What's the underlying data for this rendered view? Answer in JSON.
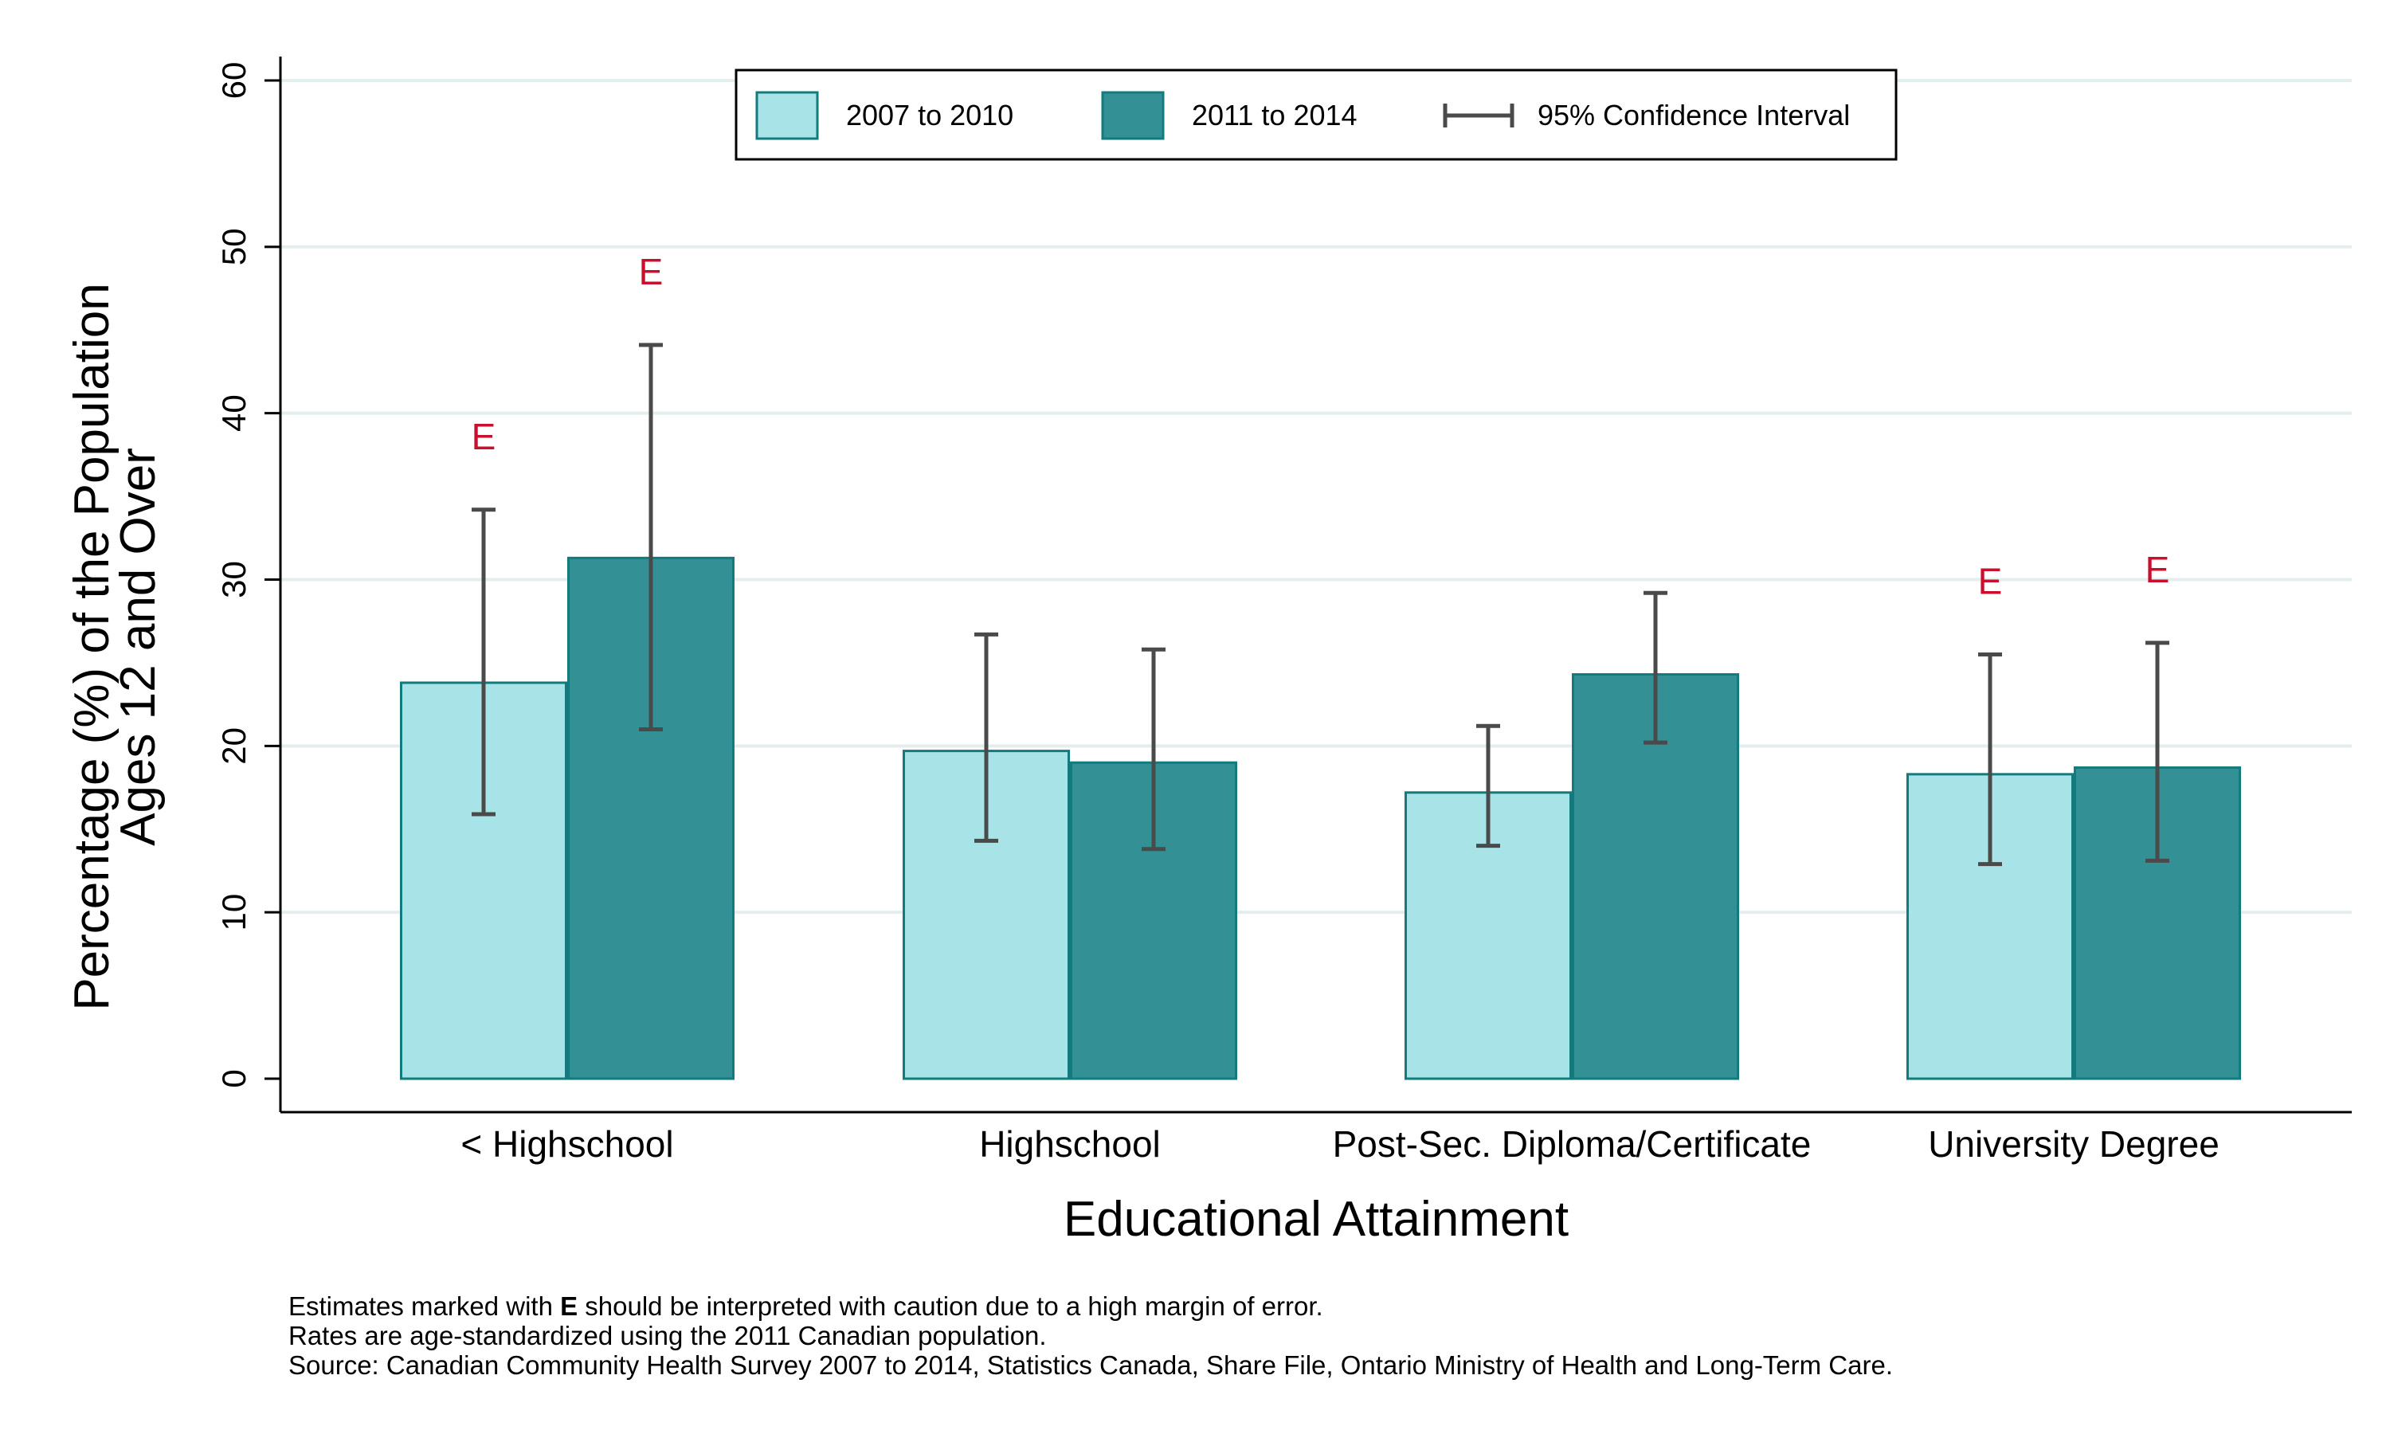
{
  "chart_data": {
    "type": "bar",
    "xlabel": "Educational Attainment",
    "ylabel_lines": [
      "Percentage (%) of the Population",
      "Ages 12 and Over"
    ],
    "ylim": [
      0,
      60
    ],
    "yticks": [
      0,
      10,
      20,
      30,
      40,
      50,
      60
    ],
    "grid": true,
    "legend_position": "top-center",
    "categories": [
      "< Highschool",
      "Highschool",
      "Post-Sec. Diploma/Certificate",
      "University Degree"
    ],
    "series": [
      {
        "name": "2007 to 2010",
        "color": "#a8e4e7",
        "values": [
          23.8,
          19.7,
          17.2,
          18.3
        ],
        "ci_low": [
          15.9,
          14.3,
          14.0,
          12.9
        ],
        "ci_high": [
          34.2,
          26.7,
          21.2,
          25.5
        ],
        "e_flag": [
          true,
          false,
          false,
          true
        ]
      },
      {
        "name": "2011 to 2014",
        "color": "#339195",
        "values": [
          31.3,
          19.0,
          24.3,
          18.7
        ],
        "ci_low": [
          21.0,
          13.8,
          20.2,
          13.1
        ],
        "ci_high": [
          44.1,
          25.8,
          29.2,
          26.2
        ],
        "e_flag": [
          true,
          false,
          false,
          true
        ]
      }
    ],
    "ci_legend_label": "95% Confidence Interval",
    "e_marker_text": "E",
    "colors": {
      "bar_border": "#137a7e",
      "ci": "#4a4a4a",
      "e_flag": "#c8102e",
      "grid": "#e4eeee"
    }
  },
  "footnotes": {
    "line1_prefix": "Estimates marked with ",
    "line1_marker": "E",
    "line1_suffix": " should be interpreted with caution due to a high margin of error.",
    "line2": "Rates are age-standardized using the 2011 Canadian population.",
    "line3": "Source: Canadian Community Health Survey 2007 to 2014, Statistics Canada, Share File, Ontario Ministry of Health and Long-Term Care."
  }
}
